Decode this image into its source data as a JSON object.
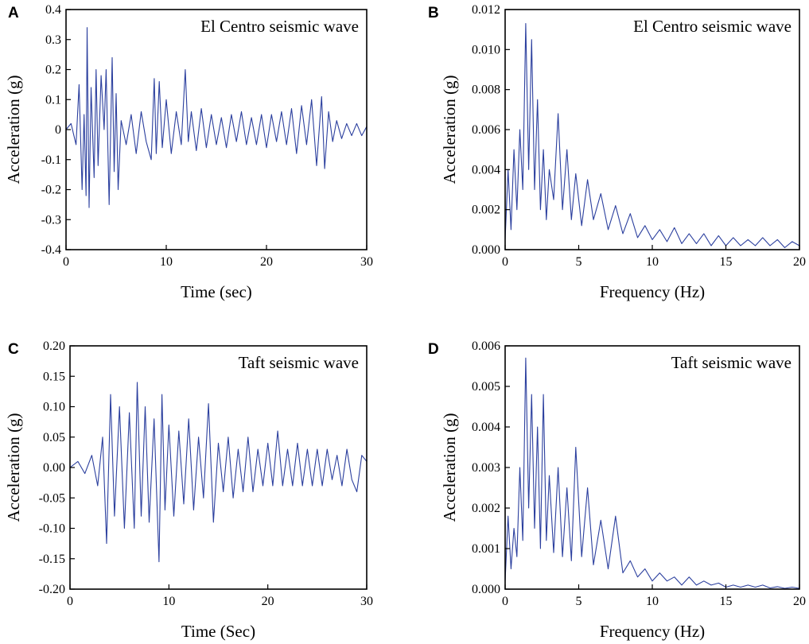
{
  "figure": {
    "background": "#ffffff",
    "line_color": "#2b3f9e"
  },
  "chart_data": [
    {
      "panel": "A",
      "type": "line",
      "title": "El Centro seismic wave",
      "xlabel": "Time (sec)",
      "ylabel": "Acceleration (g)",
      "xlim": [
        0,
        30
      ],
      "ylim": [
        -0.4,
        0.4
      ],
      "xticks": [
        0,
        10,
        20,
        30
      ],
      "xtick_labels": [
        "0",
        "10",
        "20",
        "30"
      ],
      "yticks": [
        -0.4,
        -0.3,
        -0.2,
        -0.1,
        0,
        0.1,
        0.2,
        0.3,
        0.4
      ],
      "ytick_labels": [
        "-0.4",
        "-0.3",
        "-0.2",
        "-0.1",
        "0",
        "0.1",
        "0.2",
        "0.3",
        "0.4"
      ],
      "x": [
        0,
        0.5,
        1,
        1.3,
        1.6,
        1.8,
        2,
        2.1,
        2.3,
        2.5,
        2.8,
        3,
        3.2,
        3.5,
        3.8,
        4,
        4.3,
        4.6,
        4.8,
        5,
        5.2,
        5.5,
        6,
        6.5,
        7,
        7.5,
        8,
        8.5,
        8.8,
        9,
        9.3,
        9.6,
        10,
        10.5,
        11,
        11.5,
        11.9,
        12.2,
        12.5,
        13,
        13.5,
        14,
        14.5,
        15,
        15.5,
        16,
        16.5,
        17,
        17.5,
        18,
        18.5,
        19,
        19.5,
        20,
        20.5,
        21,
        21.5,
        22,
        22.5,
        23,
        23.5,
        24,
        24.5,
        25,
        25.5,
        25.8,
        26.2,
        26.6,
        27,
        27.5,
        28,
        28.5,
        29,
        29.5,
        30
      ],
      "y": [
        0,
        0.02,
        -0.05,
        0.15,
        -0.2,
        0.05,
        -0.22,
        0.34,
        -0.26,
        0.14,
        -0.16,
        0.2,
        -0.12,
        0.18,
        0.0,
        0.2,
        -0.25,
        0.24,
        -0.14,
        0.12,
        -0.2,
        0.03,
        -0.05,
        0.05,
        -0.08,
        0.06,
        -0.04,
        -0.1,
        0.17,
        -0.08,
        0.16,
        -0.06,
        0.1,
        -0.08,
        0.06,
        -0.05,
        0.2,
        -0.04,
        0.06,
        -0.07,
        0.07,
        -0.06,
        0.05,
        -0.05,
        0.04,
        -0.06,
        0.05,
        -0.04,
        0.06,
        -0.05,
        0.04,
        -0.05,
        0.05,
        -0.06,
        0.05,
        -0.04,
        0.06,
        -0.05,
        0.07,
        -0.08,
        0.08,
        -0.05,
        0.1,
        -0.12,
        0.11,
        -0.13,
        0.06,
        -0.04,
        0.03,
        -0.03,
        0.02,
        -0.02,
        0.02,
        -0.02,
        0.01
      ]
    },
    {
      "panel": "B",
      "type": "line",
      "title": "El Centro seismic wave",
      "xlabel": "Frequency (Hz)",
      "ylabel": "Acceleration (g)",
      "xlim": [
        0,
        20
      ],
      "ylim": [
        0,
        0.012
      ],
      "xticks": [
        0,
        5,
        10,
        15,
        20
      ],
      "xtick_labels": [
        "0",
        "5",
        "10",
        "15",
        "20"
      ],
      "yticks": [
        0,
        0.002,
        0.004,
        0.006,
        0.008,
        0.01,
        0.012
      ],
      "ytick_labels": [
        "0.000",
        "0.002",
        "0.004",
        "0.006",
        "0.008",
        "0.010",
        "0.012"
      ],
      "x": [
        0,
        0.2,
        0.4,
        0.6,
        0.8,
        1.0,
        1.2,
        1.4,
        1.6,
        1.8,
        2.0,
        2.2,
        2.4,
        2.6,
        2.8,
        3.0,
        3.3,
        3.6,
        3.9,
        4.2,
        4.5,
        4.8,
        5.2,
        5.6,
        6.0,
        6.5,
        7.0,
        7.5,
        8.0,
        8.5,
        9.0,
        9.5,
        10,
        10.5,
        11,
        11.5,
        12,
        12.5,
        13,
        13.5,
        14,
        14.5,
        15,
        15.5,
        16,
        16.5,
        17,
        17.5,
        18,
        18.5,
        19,
        19.5,
        20
      ],
      "y": [
        0.0005,
        0.004,
        0.001,
        0.005,
        0.002,
        0.006,
        0.003,
        0.0113,
        0.004,
        0.0105,
        0.003,
        0.0075,
        0.002,
        0.005,
        0.0015,
        0.004,
        0.0025,
        0.0068,
        0.002,
        0.005,
        0.0015,
        0.0038,
        0.0012,
        0.0035,
        0.0015,
        0.0028,
        0.001,
        0.0022,
        0.0008,
        0.0018,
        0.0006,
        0.0012,
        0.0005,
        0.001,
        0.0004,
        0.0011,
        0.0003,
        0.0008,
        0.0003,
        0.0008,
        0.0002,
        0.0007,
        0.0002,
        0.0006,
        0.0002,
        0.0005,
        0.0002,
        0.0006,
        0.0002,
        0.0005,
        0.0001,
        0.0004,
        0.0002
      ]
    },
    {
      "panel": "C",
      "type": "line",
      "title": "Taft seismic wave",
      "xlabel": "Time (Sec)",
      "ylabel": "Acceleration (g)",
      "xlim": [
        0,
        30
      ],
      "ylim": [
        -0.2,
        0.2
      ],
      "xticks": [
        0,
        10,
        20,
        30
      ],
      "xtick_labels": [
        "0",
        "10",
        "20",
        "30"
      ],
      "yticks": [
        -0.2,
        -0.15,
        -0.1,
        -0.05,
        0,
        0.05,
        0.1,
        0.15,
        0.2
      ],
      "ytick_labels": [
        "-0.20",
        "-0.15",
        "-0.10",
        "-0.05",
        "0.00",
        "0.05",
        "0.10",
        "0.15",
        "0.20"
      ],
      "x": [
        0,
        0.8,
        1.5,
        2.2,
        2.8,
        3.3,
        3.7,
        4.1,
        4.5,
        5,
        5.5,
        6,
        6.5,
        6.8,
        7.2,
        7.6,
        8,
        8.5,
        9,
        9.3,
        9.6,
        10,
        10.5,
        11,
        11.5,
        12,
        12.5,
        13,
        13.5,
        14,
        14.5,
        15,
        15.5,
        16,
        16.5,
        17,
        17.5,
        18,
        18.5,
        19,
        19.5,
        20,
        20.5,
        21,
        21.5,
        22,
        22.5,
        23,
        23.5,
        24,
        24.5,
        25,
        25.5,
        26,
        26.5,
        27,
        27.5,
        28,
        28.5,
        29,
        29.5,
        30
      ],
      "y": [
        0,
        0.01,
        -0.01,
        0.02,
        -0.03,
        0.05,
        -0.125,
        0.12,
        -0.08,
        0.1,
        -0.1,
        0.09,
        -0.1,
        0.14,
        -0.08,
        0.1,
        -0.09,
        0.08,
        -0.155,
        0.12,
        -0.07,
        0.07,
        -0.08,
        0.06,
        -0.06,
        0.08,
        -0.07,
        0.05,
        -0.05,
        0.105,
        -0.09,
        0.04,
        -0.04,
        0.05,
        -0.05,
        0.03,
        -0.04,
        0.05,
        -0.04,
        0.03,
        -0.03,
        0.04,
        -0.03,
        0.06,
        -0.03,
        0.03,
        -0.03,
        0.04,
        -0.03,
        0.03,
        -0.03,
        0.03,
        -0.03,
        0.03,
        -0.02,
        0.02,
        -0.03,
        0.03,
        -0.02,
        -0.04,
        0.02,
        0.01
      ]
    },
    {
      "panel": "D",
      "type": "line",
      "title": "Taft seismic wave",
      "xlabel": "Frequency (Hz)",
      "ylabel": "Acceleration (g)",
      "xlim": [
        0,
        20
      ],
      "ylim": [
        0,
        0.006
      ],
      "xticks": [
        0,
        5,
        10,
        15,
        20
      ],
      "xtick_labels": [
        "0",
        "5",
        "10",
        "15",
        "20"
      ],
      "yticks": [
        0,
        0.001,
        0.002,
        0.003,
        0.004,
        0.005,
        0.006
      ],
      "ytick_labels": [
        "0.000",
        "0.001",
        "0.002",
        "0.003",
        "0.004",
        "0.005",
        "0.006"
      ],
      "x": [
        0,
        0.2,
        0.4,
        0.6,
        0.8,
        1.0,
        1.2,
        1.4,
        1.6,
        1.8,
        2.0,
        2.2,
        2.4,
        2.6,
        2.8,
        3.0,
        3.3,
        3.6,
        3.9,
        4.2,
        4.5,
        4.8,
        5.2,
        5.6,
        6.0,
        6.5,
        7.0,
        7.5,
        8.0,
        8.5,
        9.0,
        9.5,
        10,
        10.5,
        11,
        11.5,
        12,
        12.5,
        13,
        13.5,
        14,
        14.5,
        15,
        15.5,
        16,
        16.5,
        17,
        17.5,
        18,
        18.5,
        19,
        19.5,
        20
      ],
      "y": [
        0.0002,
        0.0018,
        0.0005,
        0.0015,
        0.0008,
        0.003,
        0.0012,
        0.0057,
        0.002,
        0.0048,
        0.0015,
        0.004,
        0.001,
        0.0048,
        0.0012,
        0.0028,
        0.0009,
        0.003,
        0.0008,
        0.0025,
        0.0007,
        0.0035,
        0.0008,
        0.0025,
        0.0006,
        0.0017,
        0.0005,
        0.0018,
        0.0004,
        0.0007,
        0.0003,
        0.0005,
        0.0002,
        0.0004,
        0.0002,
        0.0003,
        0.0001,
        0.0003,
        0.0001,
        0.0002,
        0.0001,
        0.00015,
        5e-05,
        0.0001,
        5e-05,
        0.0001,
        5e-05,
        0.0001,
        3e-05,
        6e-05,
        2e-05,
        5e-05,
        2e-05
      ]
    }
  ]
}
